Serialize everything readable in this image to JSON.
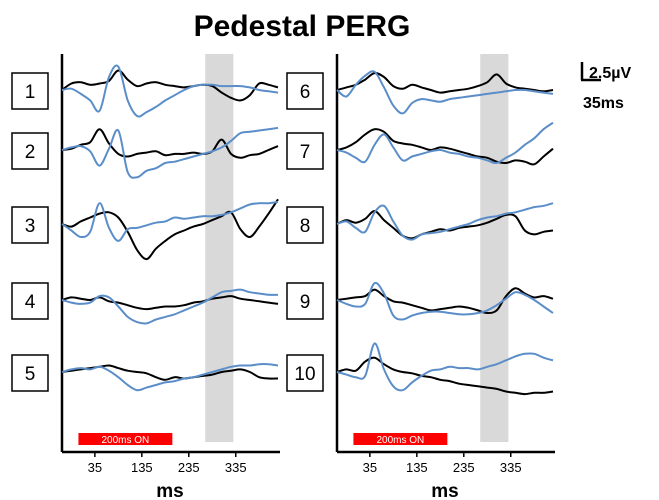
{
  "chart_data": {
    "type": "line",
    "title": "Pedestal PERG",
    "xlabel": "ms",
    "x_ticks": [
      "35",
      "135",
      "235",
      "335"
    ],
    "stimulus_label": "200ms ON",
    "stimulus_window_ms": [
      0,
      200
    ],
    "highlight_window_ms": [
      270,
      330
    ],
    "scale_bar": {
      "amplitude_label": "2.5µV",
      "time_label": "35ms"
    },
    "colors": {
      "black_trace": "#000000",
      "blue_trace": "#5b8ec9",
      "stimulus_bar": "#ff0000",
      "highlight": "#d9d9d9"
    },
    "series_colors": [
      "black",
      "blue"
    ],
    "panels": [
      {
        "name": "left",
        "traces": [
          {
            "label": "1",
            "black": [
              0.0,
              0.5,
              0.6,
              0.4,
              0.5,
              0.7,
              1.5,
              0.8,
              0.3,
              0.5,
              0.6,
              0.4,
              0.3,
              0.2,
              0.3,
              0.4,
              0.3,
              -0.2,
              -0.6,
              -0.8,
              -0.4,
              0.5,
              0.4,
              0.2
            ],
            "blue": [
              0.0,
              0.1,
              -0.3,
              -0.8,
              -1.6,
              1.0,
              1.8,
              -0.8,
              -2.0,
              -1.7,
              -1.3,
              -0.8,
              -0.4,
              0.0,
              0.3,
              0.4,
              0.4,
              0.3,
              0.3,
              0.3,
              0.2,
              0.0,
              -0.1,
              -0.2
            ]
          },
          {
            "label": "2",
            "black": [
              0.0,
              0.1,
              0.4,
              0.6,
              1.6,
              0.5,
              -0.3,
              -0.5,
              -0.3,
              -0.2,
              -0.1,
              -0.4,
              -0.3,
              -0.3,
              -0.2,
              -0.3,
              -0.1,
              0.8,
              -0.3,
              -0.6,
              -0.4,
              -0.3,
              0.0,
              0.3
            ],
            "blue": [
              0.0,
              0.2,
              0.3,
              -0.1,
              -1.2,
              0.1,
              1.5,
              -1.7,
              -2.1,
              -1.6,
              -1.4,
              -1.0,
              -0.9,
              -0.7,
              -0.5,
              -0.3,
              -0.1,
              0.2,
              0.7,
              1.3,
              1.4,
              1.5,
              1.6,
              1.7
            ]
          },
          {
            "label": "3",
            "black": [
              0.0,
              -0.2,
              0.2,
              0.5,
              0.8,
              0.9,
              0.5,
              -0.6,
              -2.0,
              -2.7,
              -1.9,
              -1.3,
              -0.8,
              -0.5,
              -0.2,
              0.0,
              0.3,
              0.6,
              0.9,
              -0.4,
              -1.0,
              -0.2,
              0.8,
              1.9
            ],
            "blue": [
              0.0,
              -0.5,
              -1.0,
              -0.6,
              1.6,
              -0.3,
              -1.3,
              -0.4,
              -0.3,
              -0.1,
              0.1,
              0.2,
              0.5,
              0.4,
              0.5,
              0.6,
              0.6,
              0.7,
              0.9,
              1.2,
              1.5,
              1.6,
              1.6,
              1.7
            ]
          },
          {
            "label": "4",
            "black": [
              0.0,
              0.2,
              0.1,
              0.0,
              0.2,
              -0.1,
              -0.2,
              -0.4,
              -0.6,
              -0.7,
              -0.6,
              -0.5,
              -0.5,
              -0.4,
              -0.2,
              -0.1,
              0.1,
              0.2,
              0.3,
              0.1,
              0.0,
              -0.1,
              -0.2,
              -0.3
            ],
            "blue": [
              0.0,
              -0.2,
              -0.3,
              -0.2,
              0.3,
              0.2,
              -0.5,
              -1.3,
              -1.7,
              -1.8,
              -1.5,
              -1.3,
              -1.1,
              -0.8,
              -0.5,
              -0.2,
              0.2,
              0.6,
              0.7,
              0.8,
              0.6,
              0.5,
              0.4,
              0.4
            ]
          },
          {
            "label": "5",
            "black": [
              0.0,
              0.1,
              0.2,
              0.3,
              0.4,
              0.5,
              0.3,
              0.1,
              0.0,
              -0.1,
              -0.4,
              -0.6,
              -0.4,
              -0.5,
              -0.4,
              -0.3,
              -0.2,
              0.0,
              0.1,
              0.2,
              0.0,
              -0.4,
              -0.5,
              -0.5
            ],
            "blue": [
              0.0,
              0.2,
              0.3,
              0.2,
              0.4,
              0.1,
              -0.4,
              -1.0,
              -1.4,
              -1.2,
              -1.0,
              -0.8,
              -0.7,
              -0.5,
              -0.4,
              -0.2,
              0.0,
              0.2,
              0.4,
              0.5,
              0.5,
              0.6,
              0.6,
              0.5
            ]
          }
        ]
      },
      {
        "name": "right",
        "traces": [
          {
            "label": "6",
            "black": [
              0.0,
              0.2,
              0.4,
              0.8,
              1.3,
              1.0,
              0.3,
              0.1,
              0.4,
              0.2,
              0.0,
              -0.2,
              -0.1,
              0.0,
              0.1,
              0.3,
              0.6,
              1.2,
              0.5,
              0.2,
              0.1,
              0.0,
              -0.1,
              0.0
            ],
            "blue": [
              0.0,
              -0.5,
              0.4,
              1.1,
              1.4,
              0.2,
              -1.2,
              -1.8,
              -1.0,
              -0.7,
              -0.8,
              -0.9,
              -0.7,
              -0.6,
              -0.5,
              -0.4,
              -0.3,
              -0.2,
              -0.1,
              0.0,
              0.0,
              -0.1,
              -0.2,
              -0.3
            ]
          },
          {
            "label": "7",
            "black": [
              0.0,
              0.2,
              0.6,
              1.2,
              1.6,
              1.4,
              0.7,
              0.5,
              0.4,
              0.2,
              0.0,
              0.2,
              0.1,
              -0.1,
              -0.3,
              -0.5,
              -0.6,
              -0.9,
              -1.0,
              -0.8,
              -0.9,
              -1.1,
              -0.5,
              0.1
            ],
            "blue": [
              0.0,
              -0.2,
              -0.6,
              -0.9,
              0.4,
              1.2,
              0.2,
              -0.8,
              -0.5,
              -0.3,
              -0.1,
              0.0,
              -0.2,
              -0.3,
              -0.5,
              -0.6,
              -0.8,
              -1.0,
              -0.6,
              -0.2,
              0.4,
              0.9,
              1.6,
              2.1
            ]
          },
          {
            "label": "8",
            "black": [
              0.0,
              0.3,
              0.1,
              0.4,
              1.0,
              0.3,
              -0.3,
              -0.9,
              -1.1,
              -0.8,
              -0.6,
              -0.4,
              -0.5,
              -0.3,
              -0.2,
              -0.1,
              0.1,
              0.4,
              0.7,
              0.6,
              -0.5,
              -0.8,
              -0.6,
              -0.5
            ],
            "blue": [
              0.0,
              0.2,
              -0.3,
              -0.6,
              0.9,
              1.4,
              0.2,
              -0.9,
              -1.2,
              -0.8,
              -0.7,
              -0.6,
              -0.4,
              -0.2,
              0.0,
              0.3,
              0.5,
              0.6,
              0.8,
              0.9,
              1.1,
              1.3,
              1.4,
              1.6
            ]
          },
          {
            "label": "9",
            "black": [
              0.0,
              0.1,
              0.2,
              0.3,
              0.8,
              0.3,
              -0.1,
              -0.2,
              -0.4,
              -0.6,
              -0.8,
              -0.7,
              -0.6,
              -0.5,
              -0.6,
              -0.8,
              -1.0,
              -0.8,
              0.3,
              0.9,
              0.5,
              0.2,
              0.3,
              0.1
            ],
            "blue": [
              0.0,
              -0.3,
              -0.5,
              -0.3,
              1.3,
              0.5,
              -1.2,
              -1.5,
              -1.2,
              -1.0,
              -0.9,
              -0.9,
              -1.0,
              -1.1,
              -1.1,
              -1.0,
              -0.8,
              -0.4,
              0.1,
              0.6,
              0.4,
              0.0,
              -0.5,
              -1.0
            ]
          },
          {
            "label": "10",
            "black": [
              0.0,
              0.2,
              0.1,
              0.8,
              1.1,
              0.6,
              0.2,
              0.0,
              -0.1,
              -0.3,
              -0.4,
              -0.6,
              -0.7,
              -0.9,
              -1.0,
              -1.1,
              -1.2,
              -1.3,
              -1.5,
              -1.6,
              -1.7,
              -1.6,
              -1.6,
              -1.5
            ],
            "blue": [
              0.0,
              -0.2,
              -0.4,
              -0.3,
              2.2,
              0.2,
              -1.1,
              -1.4,
              -0.8,
              -0.3,
              0.1,
              0.2,
              0.4,
              0.3,
              0.3,
              0.2,
              0.4,
              0.6,
              0.9,
              1.2,
              1.4,
              1.4,
              1.1,
              0.9
            ]
          }
        ]
      }
    ]
  }
}
